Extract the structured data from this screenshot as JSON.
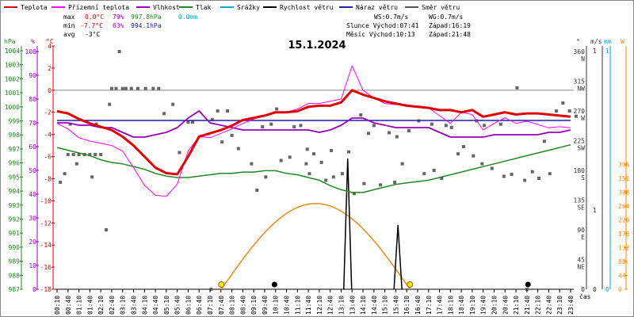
{
  "chart_data": {
    "type": "line",
    "title": "15.1.2024",
    "legend": [
      {
        "label": "Teplota",
        "color": "#e00000"
      },
      {
        "label": "Přízemní teplota",
        "color": "#ff00ff"
      },
      {
        "label": "Vlhkost",
        "color": "#9900bb"
      },
      {
        "label": "Tlak",
        "color": "#228822"
      },
      {
        "label": "Srážky",
        "color": "#00aacc"
      },
      {
        "label": "Rychlost větru",
        "color": "#000000"
      },
      {
        "label": "Náraz větru",
        "color": "#2020aa"
      },
      {
        "label": "Směr větru",
        "color": "#555555"
      }
    ],
    "stats": {
      "max": {
        "label": "max",
        "temp": "0.0°C",
        "hum": "79%",
        "press": "997.8hPa",
        "rain": "0.0mm"
      },
      "min": {
        "label": "min",
        "temp": "-7.7°C",
        "hum": "63%",
        "press": "994.1hPa"
      },
      "avg": {
        "label": "avg",
        "temp": "-3°C"
      }
    },
    "wind_info": {
      "ws": "WS:0.7m/s",
      "wg": "WG:0.7m/s"
    },
    "sun_info": {
      "rise": "Slunce Východ:07:41",
      "set": "Západ:16:19"
    },
    "moon_info": {
      "rise": "Měsíc  Východ:10:13",
      "set": "Západ:21:48"
    },
    "axes": {
      "hpa": {
        "label": "hPa",
        "color": "#228822",
        "ticks": [
          1004,
          1003,
          1002,
          1001,
          1000,
          999,
          998,
          997,
          996,
          995,
          994,
          993,
          992,
          991,
          990,
          989,
          988,
          987
        ]
      },
      "percent": {
        "label": "%",
        "color": "#9900bb",
        "ticks": [
          100,
          90,
          80,
          70,
          60,
          50,
          40,
          30,
          20,
          10,
          0
        ]
      },
      "celsius": {
        "label": "°C",
        "color": "#e00000",
        "ticks": [
          4,
          2,
          0,
          -2,
          -4,
          -6,
          -8,
          -10,
          -12,
          -14,
          -16,
          -18
        ]
      },
      "degree": {
        "label": "°",
        "color": "#333333",
        "ticks": [
          "360",
          "N",
          "315",
          "NW",
          "270",
          "W",
          "225",
          "SW",
          "180",
          "S",
          "135",
          "SE",
          "90",
          "E",
          "45",
          "NE",
          "0"
        ]
      },
      "ms": {
        "label": "m/s",
        "color": "#333333",
        "ticks": [
          "1",
          "0"
        ]
      },
      "mm": {
        "label": "mm",
        "color": "#00aacc",
        "ticks": [
          "1",
          "0"
        ]
      },
      "w": {
        "label": "W",
        "color": "#ff8800",
        "ticks": [
          396,
          352,
          308,
          264,
          220,
          176,
          132,
          88,
          44,
          0
        ]
      },
      "time_label": "čas"
    },
    "x_times": [
      "00:10",
      "00:40",
      "01:10",
      "01:40",
      "02:10",
      "02:40",
      "03:10",
      "03:40",
      "04:10",
      "04:40",
      "05:10",
      "05:40",
      "06:10",
      "06:40",
      "07:10",
      "07:40",
      "08:10",
      "08:40",
      "09:10",
      "09:40",
      "10:10",
      "10:40",
      "11:10",
      "11:40",
      "12:10",
      "12:40",
      "13:10",
      "13:40",
      "14:10",
      "14:40",
      "15:10",
      "15:40",
      "16:10",
      "16:40",
      "17:10",
      "17:40",
      "18:10",
      "18:40",
      "19:10",
      "19:40",
      "20:10",
      "20:40",
      "21:10",
      "21:40",
      "22:10",
      "22:40",
      "23:10",
      "23:40"
    ],
    "series": {
      "temperature_c": [
        -1.9,
        -2.1,
        -2.6,
        -3.0,
        -3.3,
        -3.6,
        -4.2,
        -5.0,
        -6.0,
        -7.0,
        -7.5,
        -7.6,
        -6.0,
        -4.2,
        -3.9,
        -3.6,
        -3.2,
        -2.7,
        -2.5,
        -2.3,
        -2.0,
        -2.0,
        -1.9,
        -1.5,
        -1.4,
        -1.4,
        -1.1,
        0.0,
        -0.4,
        -0.7,
        -1.0,
        -1.2,
        -1.4,
        -1.5,
        -1.6,
        -1.8,
        -1.8,
        -2.0,
        -1.8,
        -2.4,
        -2.2,
        -2.0,
        -2.2,
        -2.1,
        -2.1,
        -2.2,
        -2.3,
        -2.4
      ],
      "ground_temp_c": [
        -3.0,
        -3.5,
        -4.3,
        -4.6,
        -4.8,
        -5.0,
        -5.5,
        -7.0,
        -8.6,
        -9.5,
        -9.6,
        -8.5,
        -5.5,
        -4.2,
        -4.3,
        -3.9,
        -3.5,
        -3.0,
        -2.6,
        -2.3,
        -2.0,
        -2.0,
        -1.7,
        -1.2,
        -1.2,
        -1.0,
        -0.8,
        2.2,
        0.0,
        -0.7,
        -1.2,
        -1.3,
        -1.3,
        -1.5,
        -1.6,
        -2.3,
        -3.0,
        -2.0,
        -2.2,
        -3.6,
        -3.0,
        -2.5,
        -3.0,
        -2.8,
        -3.1,
        -3.4,
        -3.3,
        -3.4
      ],
      "humidity_pct": [
        70,
        70,
        69,
        69,
        68,
        68,
        66,
        64,
        64,
        65,
        66,
        68,
        72,
        75,
        70,
        69,
        68,
        67,
        67,
        67,
        67,
        67,
        67,
        67,
        66,
        67,
        69,
        72,
        72,
        70,
        69,
        68,
        68,
        68,
        68,
        66,
        64,
        64,
        64,
        64,
        65,
        65,
        65,
        65,
        65,
        66,
        66,
        67
      ],
      "pressure_hpa": [
        997.4,
        997.2,
        997.0,
        996.8,
        996.5,
        996.3,
        996.2,
        996.0,
        995.8,
        995.5,
        995.3,
        995.2,
        995.2,
        995.3,
        995.4,
        995.5,
        995.5,
        995.6,
        995.6,
        995.7,
        995.7,
        995.5,
        995.4,
        995.2,
        995.0,
        994.6,
        994.3,
        994.1,
        994.1,
        994.3,
        994.5,
        994.7,
        994.8,
        994.9,
        995.0,
        995.2,
        995.4,
        995.6,
        995.8,
        996.0,
        996.2,
        996.4,
        996.6,
        996.8,
        997.0,
        997.2,
        997.4,
        997.6
      ],
      "gust_pct": [
        71,
        71,
        71,
        71,
        71,
        71,
        71,
        71,
        71,
        71,
        71,
        71,
        71,
        71,
        71,
        71,
        71,
        71,
        71,
        71,
        71,
        71,
        71,
        71,
        71,
        71,
        71,
        71,
        71,
        71,
        71,
        71,
        71,
        71,
        71,
        71,
        71,
        71,
        71,
        71,
        71,
        71,
        71,
        71,
        71,
        71,
        71,
        71
      ]
    }
  }
}
